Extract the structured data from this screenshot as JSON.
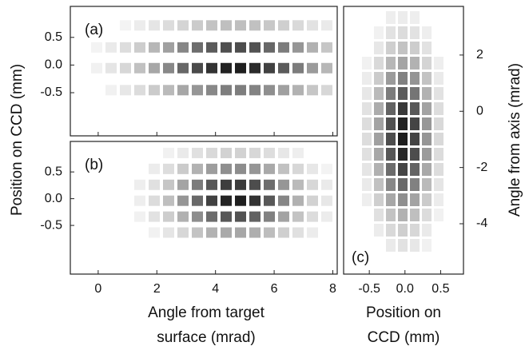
{
  "chart_data": [
    {
      "type": "heatmap",
      "panel_label": "(a)",
      "ylabel": "Position on CCD (mm)",
      "xlim": [
        -0.95,
        8.15
      ],
      "ylim": [
        -1.28,
        1.06
      ],
      "yticks": [
        0.5,
        {
          "value": 0,
          "label": "0.0"
        },
        -0.5
      ]
    },
    {
      "type": "heatmap",
      "panel_label": "(b)",
      "xlabel": [
        "Angle from target",
        "surface (mrad)"
      ],
      "xlim": [
        -0.95,
        8.15
      ],
      "ylim": [
        -1.41,
        1.07
      ],
      "xticks": [
        0,
        2,
        4,
        6,
        8
      ],
      "yticks": [
        0.5,
        {
          "value": 0,
          "label": "0.0"
        },
        -0.5
      ]
    },
    {
      "type": "heatmap",
      "panel_label": "(c)",
      "xlabel": [
        "Position on",
        "CCD (mm)"
      ],
      "ylabel": "Angle from axis (mrad)",
      "xlim": [
        -0.86,
        0.82
      ],
      "ylim": [
        -5.79,
        3.73
      ],
      "xticks": [
        -0.5,
        {
          "value": 0,
          "label": "0.0"
        },
        0.5
      ],
      "yticks": [
        2,
        0,
        -2,
        -4
      ]
    }
  ]
}
